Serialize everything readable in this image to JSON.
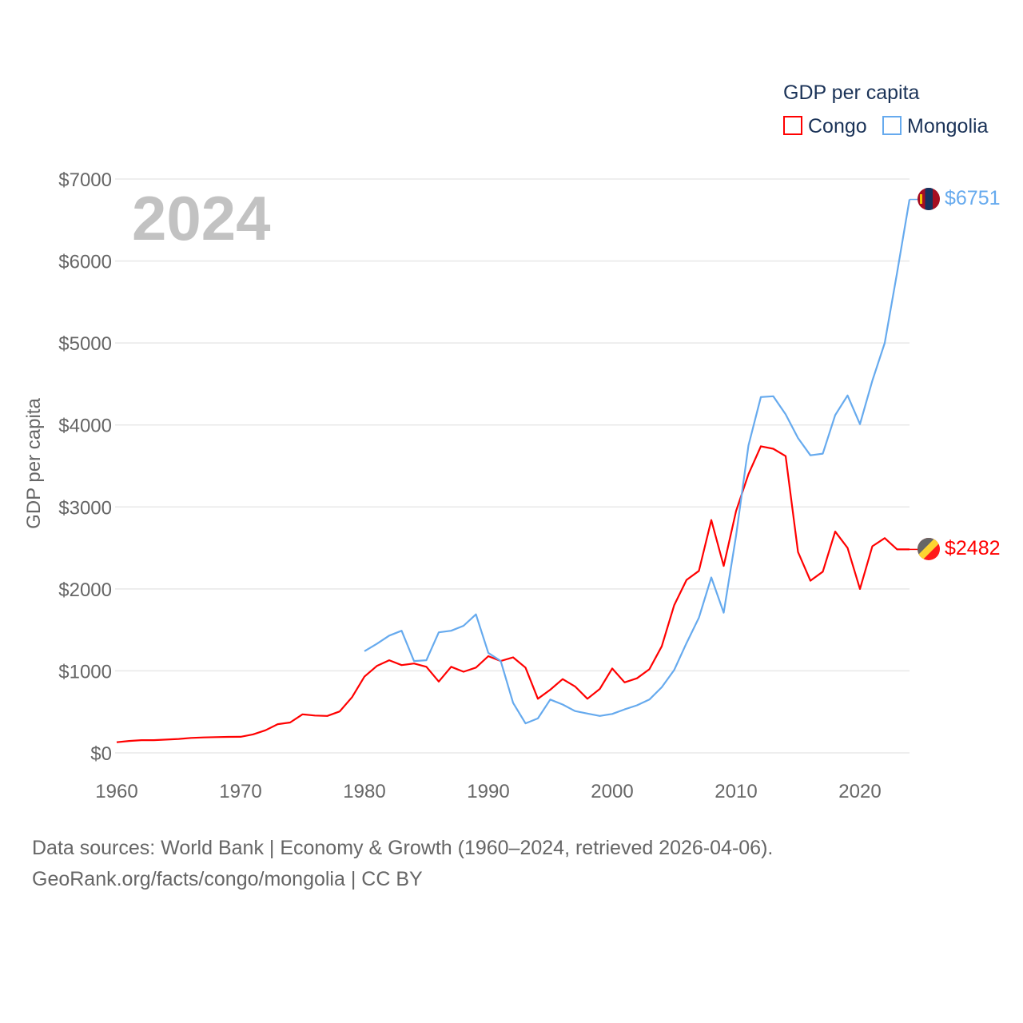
{
  "chart_data": {
    "type": "line",
    "title": "",
    "year_label": "2024",
    "ylabel": "GDP per capita",
    "xlabel": "",
    "xlim": [
      1960,
      2024
    ],
    "ylim": [
      0,
      7000
    ],
    "grid": true,
    "x_ticks": [
      1960,
      1970,
      1980,
      1990,
      2000,
      2010,
      2020
    ],
    "x_tick_labels": [
      "1960",
      "1970",
      "1980",
      "1990",
      "2000",
      "2010",
      "2020"
    ],
    "y_ticks": [
      0,
      1000,
      2000,
      3000,
      4000,
      5000,
      6000,
      7000
    ],
    "y_tick_labels": [
      "$0",
      "$1000",
      "$2000",
      "$3000",
      "$4000",
      "$5000",
      "$6000",
      "$7000"
    ],
    "legend": {
      "title": "GDP per capita",
      "placement": "top-right"
    },
    "series": [
      {
        "name": "Congo",
        "color": "#ff0000",
        "end_label": "$2482",
        "x_start": 1960,
        "values": [
          130,
          145,
          155,
          155,
          162,
          170,
          182,
          188,
          192,
          195,
          196,
          225,
          275,
          350,
          370,
          470,
          455,
          450,
          505,
          680,
          930,
          1060,
          1130,
          1070,
          1090,
          1050,
          870,
          1050,
          990,
          1040,
          1180,
          1120,
          1165,
          1040,
          660,
          770,
          900,
          810,
          660,
          780,
          1030,
          860,
          910,
          1020,
          1300,
          1800,
          2110,
          2220,
          2840,
          2280,
          2950,
          3400,
          3740,
          3710,
          3620,
          2450,
          2100,
          2210,
          2700,
          2500,
          2000,
          2520,
          2620,
          2482,
          2482
        ]
      },
      {
        "name": "Mongolia",
        "color": "#66aaee",
        "end_label": "$6751",
        "x_start": 1980,
        "values": [
          1240,
          1330,
          1430,
          1490,
          1120,
          1130,
          1470,
          1490,
          1550,
          1690,
          1220,
          1120,
          610,
          360,
          420,
          650,
          590,
          510,
          480,
          450,
          475,
          530,
          580,
          650,
          800,
          1010,
          1340,
          1650,
          2140,
          1710,
          2650,
          3750,
          4340,
          4350,
          4130,
          3840,
          3630,
          3650,
          4120,
          4360,
          4010,
          4540,
          5000,
          5860,
          6751
        ]
      }
    ]
  },
  "footer": {
    "line1": "Data sources: World Bank | Economy & Growth (1960–2024, retrieved 2026-04-06).",
    "line2": "GeoRank.org/facts/congo/mongolia | CC BY"
  }
}
